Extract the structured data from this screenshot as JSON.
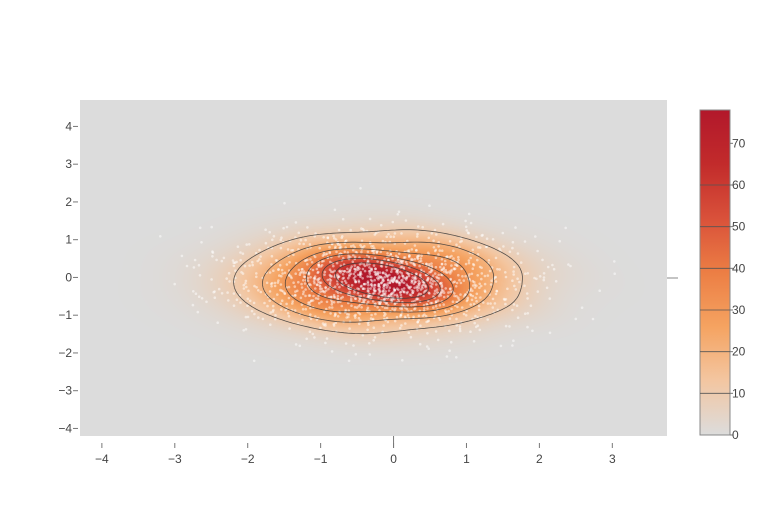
{
  "chart_data": {
    "type": "heatmap",
    "subtype": "2d-density-contour-with-scatter",
    "title": "",
    "xlabel": "",
    "ylabel": "",
    "xlim": [
      -4.3,
      3.75
    ],
    "ylim": [
      -4.2,
      4.7
    ],
    "x_ticks": [
      {
        "value": -4,
        "label": "−4"
      },
      {
        "value": -3,
        "label": "−3"
      },
      {
        "value": -2,
        "label": "−2"
      },
      {
        "value": -1,
        "label": "−1"
      },
      {
        "value": 0,
        "label": "0"
      },
      {
        "value": 1,
        "label": "1"
      },
      {
        "value": 2,
        "label": "2"
      },
      {
        "value": 3,
        "label": "3"
      }
    ],
    "y_ticks": [
      {
        "value": 4,
        "label": "4"
      },
      {
        "value": 3,
        "label": "3"
      },
      {
        "value": 2,
        "label": "2"
      },
      {
        "value": 1,
        "label": "1"
      },
      {
        "value": 0,
        "label": "0"
      },
      {
        "value": -1,
        "label": "−1"
      },
      {
        "value": -2,
        "label": "−2"
      },
      {
        "value": -3,
        "label": "−3"
      },
      {
        "value": -4,
        "label": "−4"
      }
    ],
    "density": {
      "center": [
        -0.2,
        -0.1
      ],
      "sigma": [
        1.0,
        0.68
      ],
      "peak": 72
    },
    "contour_levels": [
      10,
      20,
      30,
      40,
      50,
      60
    ],
    "scatter": {
      "count": 1500,
      "marker_color": "#ffffff",
      "opacity": 0.5
    },
    "colorscale": [
      "#dcdcdc",
      "#f3c6a1",
      "#f5a361",
      "#ec7e44",
      "#d9513a",
      "#c22b2b",
      "#b2182b"
    ],
    "colorbar": {
      "range": [
        0,
        78
      ],
      "ticks": [
        {
          "value": 70,
          "label": "70"
        },
        {
          "value": 60,
          "label": "60"
        },
        {
          "value": 50,
          "label": "50"
        },
        {
          "value": 40,
          "label": "40"
        },
        {
          "value": 30,
          "label": "30"
        },
        {
          "value": 20,
          "label": "20"
        },
        {
          "value": 10,
          "label": "10"
        },
        {
          "value": 0,
          "label": "0"
        }
      ]
    },
    "background_color": "#dcdcdc",
    "grid": false,
    "legend": "none"
  }
}
